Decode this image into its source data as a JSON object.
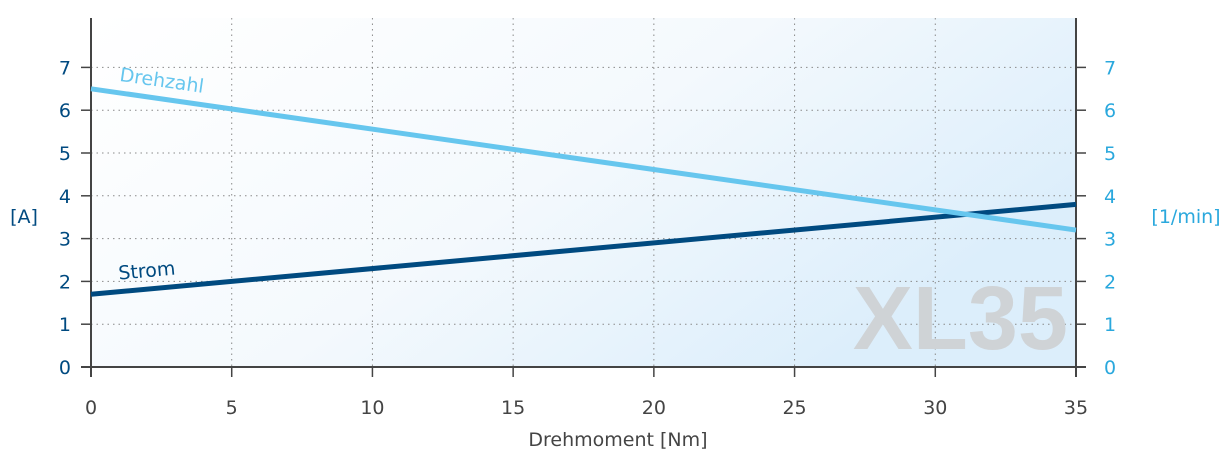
{
  "chart_data": {
    "type": "line",
    "xlabel": "Drehmoment [Nm]",
    "ylabel_left": "[A]",
    "ylabel_right": "[1/min]",
    "xlim": [
      0,
      35
    ],
    "ylim_left": [
      0,
      8
    ],
    "ylim_right": [
      0,
      8
    ],
    "x_ticks": [
      "0",
      "5",
      "10",
      "15",
      "20",
      "25",
      "30",
      "35"
    ],
    "y_ticks_left": [
      "0",
      "1",
      "2",
      "3",
      "4",
      "5",
      "6",
      "7"
    ],
    "y_ticks_right": [
      "0",
      "1",
      "2",
      "3",
      "4",
      "5",
      "6",
      "7"
    ],
    "grid": true,
    "watermark": "XL35",
    "series": [
      {
        "name": "Strom",
        "axis": "left",
        "color": "#004a80",
        "x": [
          0,
          35
        ],
        "y": [
          1.7,
          3.8
        ]
      },
      {
        "name": "Drehzahl",
        "axis": "right",
        "color": "#66c6ee",
        "x": [
          0,
          35
        ],
        "y": [
          6.5,
          3.2
        ]
      }
    ],
    "colors": {
      "left_axis": "#004a80",
      "right_axis": "#2aa8dd",
      "x_axis": "#444444",
      "grid": "#8a8a8a",
      "watermark": "#cfd3d6"
    }
  }
}
